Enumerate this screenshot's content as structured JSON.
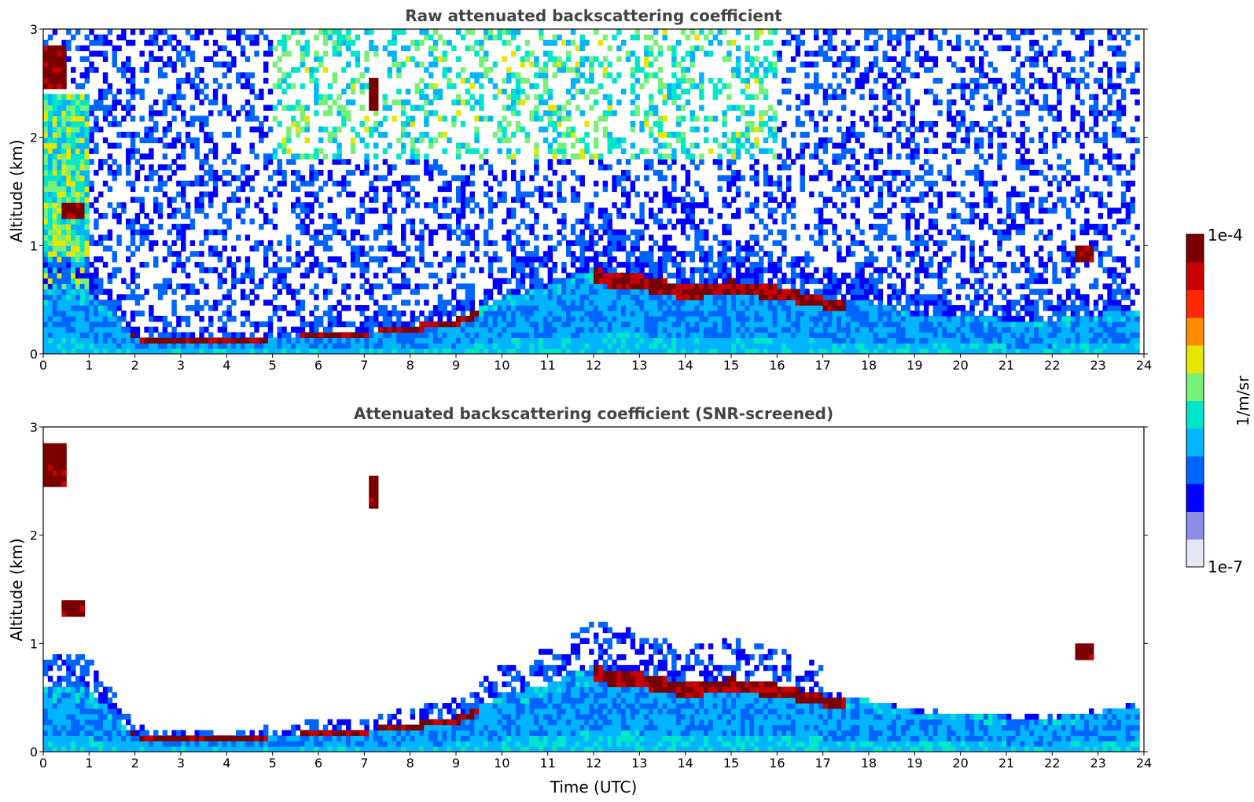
{
  "chart_data": [
    {
      "type": "heatmap",
      "title": "Raw attenuated backscattering coefficient",
      "xlabel": "",
      "ylabel": "Altitude (km)",
      "xlim": [
        0,
        24
      ],
      "ylim": [
        0,
        3
      ],
      "x_ticks": [
        "0",
        "1",
        "2",
        "3",
        "4",
        "5",
        "6",
        "7",
        "8",
        "9",
        "10",
        "11",
        "12",
        "13",
        "14",
        "15",
        "16",
        "17",
        "18",
        "19",
        "20",
        "21",
        "22",
        "23",
        "24"
      ],
      "y_ticks": [
        "0",
        "1",
        "2",
        "3"
      ],
      "data_end_hour": 23.85,
      "features": {
        "boundary_layer_top_km": [
          [
            0,
            0.55
          ],
          [
            1,
            0.55
          ],
          [
            1.5,
            0.35
          ],
          [
            2,
            0.15
          ],
          [
            3,
            0.12
          ],
          [
            4,
            0.12
          ],
          [
            5,
            0.15
          ],
          [
            6,
            0.18
          ],
          [
            7,
            0.2
          ],
          [
            8,
            0.25
          ],
          [
            9,
            0.3
          ],
          [
            10,
            0.5
          ],
          [
            11,
            0.6
          ],
          [
            12,
            0.75
          ],
          [
            13,
            0.7
          ],
          [
            14,
            0.6
          ],
          [
            15,
            0.65
          ],
          [
            16,
            0.6
          ],
          [
            17,
            0.5
          ],
          [
            18,
            0.45
          ],
          [
            19,
            0.35
          ],
          [
            20,
            0.35
          ],
          [
            21,
            0.3
          ],
          [
            22,
            0.3
          ],
          [
            23,
            0.35
          ],
          [
            23.85,
            0.4
          ]
        ],
        "cloud_layers": [
          {
            "t_start": 0.05,
            "t_end": 0.5,
            "alt_bottom_km": 2.45,
            "alt_top_km": 2.85
          },
          {
            "t_start": 0.4,
            "t_end": 0.85,
            "alt_bottom_km": 1.25,
            "alt_top_km": 1.4
          },
          {
            "t_start": 7.1,
            "t_end": 7.3,
            "alt_bottom_km": 2.25,
            "alt_top_km": 2.55
          },
          {
            "t_start": 22.5,
            "t_end": 22.95,
            "alt_bottom_km": 0.85,
            "alt_top_km": 1.0
          }
        ]
      }
    },
    {
      "type": "heatmap",
      "title": "Attenuated backscattering coefficient (SNR-screened)",
      "xlabel": "Time (UTC)",
      "ylabel": "Altitude (km)",
      "xlim": [
        0,
        24
      ],
      "ylim": [
        0,
        3
      ],
      "x_ticks": [
        "0",
        "1",
        "2",
        "3",
        "4",
        "5",
        "6",
        "7",
        "8",
        "9",
        "10",
        "11",
        "12",
        "13",
        "14",
        "15",
        "16",
        "17",
        "18",
        "19",
        "20",
        "21",
        "22",
        "23",
        "24"
      ],
      "y_ticks": [
        "0",
        "1",
        "2",
        "3"
      ],
      "data_end_hour": 23.85
    }
  ],
  "colorbar": {
    "label": "1/m/sr",
    "max_label": "1e-4",
    "min_label": "1e-7",
    "colors": [
      "#e6e6f5",
      "#8c8ce6",
      "#0000ff",
      "#0064ff",
      "#00b4ff",
      "#00e6c8",
      "#78f078",
      "#e6e600",
      "#ff8c00",
      "#ff2800",
      "#c80000",
      "#7a0000"
    ]
  }
}
